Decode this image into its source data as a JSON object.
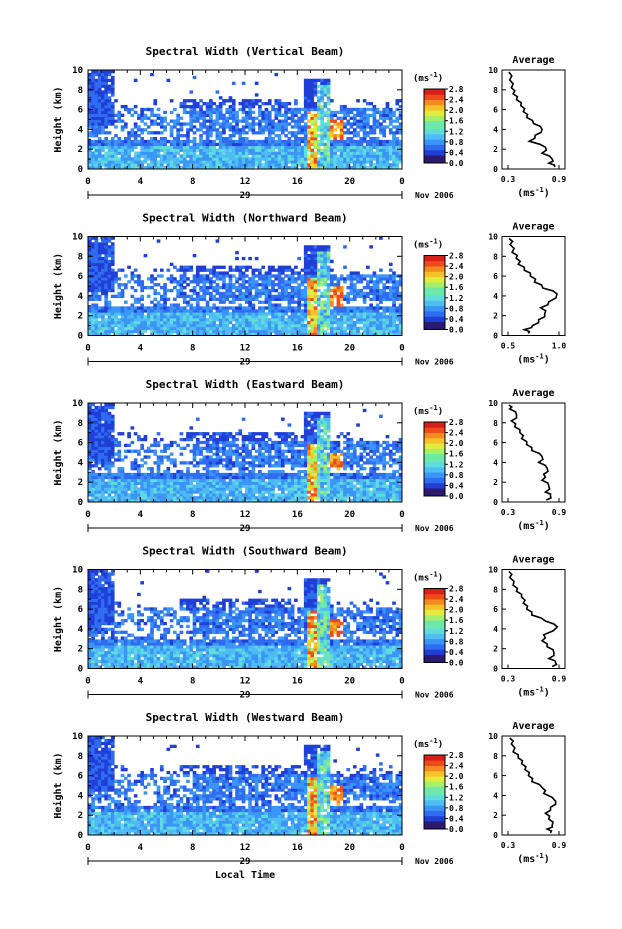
{
  "chart_data": {
    "type": "heatmap",
    "panels": [
      {
        "title": "Spectral Width (Vertical Beam)",
        "seed": 11,
        "profile_xlim": [
          0.3,
          0.9
        ],
        "profile_xticks": [
          "0.3",
          "0.9"
        ],
        "profile": [
          [
            0.85,
            0.2
          ],
          [
            0.78,
            0.6
          ],
          [
            0.82,
            1.0
          ],
          [
            0.7,
            1.6
          ],
          [
            0.74,
            2.2
          ],
          [
            0.55,
            2.8
          ],
          [
            0.62,
            3.4
          ],
          [
            0.7,
            4.0
          ],
          [
            0.6,
            4.6
          ],
          [
            0.52,
            5.2
          ],
          [
            0.48,
            5.8
          ],
          [
            0.45,
            6.4
          ],
          [
            0.4,
            7.0
          ],
          [
            0.36,
            7.6
          ],
          [
            0.34,
            8.2
          ],
          [
            0.32,
            9.0
          ],
          [
            0.31,
            9.8
          ]
        ]
      },
      {
        "title": "Spectral Width (Northward Beam)",
        "seed": 23,
        "profile_xlim": [
          0.5,
          1.0
        ],
        "profile_xticks": [
          "0.5",
          "1.0"
        ],
        "profile": [
          [
            0.7,
            0.2
          ],
          [
            0.66,
            0.6
          ],
          [
            0.74,
            1.0
          ],
          [
            0.8,
            1.6
          ],
          [
            0.86,
            2.2
          ],
          [
            0.82,
            2.8
          ],
          [
            0.9,
            3.4
          ],
          [
            0.98,
            4.2
          ],
          [
            0.84,
            4.8
          ],
          [
            0.76,
            5.4
          ],
          [
            0.72,
            6.0
          ],
          [
            0.66,
            6.6
          ],
          [
            0.6,
            7.2
          ],
          [
            0.58,
            7.8
          ],
          [
            0.54,
            8.4
          ],
          [
            0.52,
            9.2
          ],
          [
            0.51,
            9.8
          ]
        ]
      },
      {
        "title": "Spectral Width (Eastward Beam)",
        "seed": 37,
        "profile_xlim": [
          0.3,
          0.9
        ],
        "profile_xticks": [
          "0.3",
          "0.9"
        ],
        "profile": [
          [
            0.75,
            0.2
          ],
          [
            0.8,
            0.6
          ],
          [
            0.74,
            1.0
          ],
          [
            0.78,
            1.6
          ],
          [
            0.7,
            2.2
          ],
          [
            0.72,
            2.8
          ],
          [
            0.76,
            3.4
          ],
          [
            0.66,
            4.0
          ],
          [
            0.7,
            4.6
          ],
          [
            0.58,
            5.2
          ],
          [
            0.52,
            5.8
          ],
          [
            0.46,
            6.4
          ],
          [
            0.44,
            7.0
          ],
          [
            0.38,
            7.6
          ],
          [
            0.34,
            8.2
          ],
          [
            0.4,
            8.8
          ],
          [
            0.32,
            9.4
          ],
          [
            0.31,
            9.8
          ]
        ]
      },
      {
        "title": "Spectral Width (Southward Beam)",
        "seed": 53,
        "profile_xlim": [
          0.3,
          0.9
        ],
        "profile_xticks": [
          "0.3",
          "0.9"
        ],
        "profile": [
          [
            0.82,
            0.2
          ],
          [
            0.86,
            0.6
          ],
          [
            0.78,
            1.0
          ],
          [
            0.84,
            1.6
          ],
          [
            0.76,
            2.2
          ],
          [
            0.7,
            2.8
          ],
          [
            0.72,
            3.4
          ],
          [
            0.88,
            4.2
          ],
          [
            0.74,
            4.8
          ],
          [
            0.58,
            5.4
          ],
          [
            0.52,
            6.0
          ],
          [
            0.48,
            6.6
          ],
          [
            0.46,
            7.2
          ],
          [
            0.4,
            7.8
          ],
          [
            0.36,
            8.4
          ],
          [
            0.32,
            9.2
          ],
          [
            0.31,
            9.8
          ]
        ]
      },
      {
        "title": "Spectral Width (Westward Beam)",
        "seed": 71,
        "profile_xlim": [
          0.3,
          0.9
        ],
        "profile_xticks": [
          "0.3",
          "0.9"
        ],
        "profile": [
          [
            0.8,
            0.2
          ],
          [
            0.76,
            0.6
          ],
          [
            0.82,
            1.0
          ],
          [
            0.78,
            1.6
          ],
          [
            0.74,
            2.2
          ],
          [
            0.8,
            2.8
          ],
          [
            0.86,
            3.4
          ],
          [
            0.72,
            4.2
          ],
          [
            0.7,
            4.8
          ],
          [
            0.58,
            5.4
          ],
          [
            0.54,
            6.0
          ],
          [
            0.5,
            6.6
          ],
          [
            0.46,
            7.2
          ],
          [
            0.42,
            7.8
          ],
          [
            0.36,
            8.4
          ],
          [
            0.34,
            9.2
          ],
          [
            0.32,
            9.8
          ]
        ]
      }
    ],
    "ylabel": "Height (km)",
    "xlabel": "Local Time",
    "xlim": [
      0,
      24
    ],
    "ylim": [
      0,
      10
    ],
    "x_ticks": [
      "0",
      "4",
      "8",
      "12",
      "16",
      "20",
      "0"
    ],
    "y_ticks": [
      "0",
      "2",
      "4",
      "6",
      "8",
      "10"
    ],
    "date_day": "29",
    "date_month": "Nov 2006",
    "colorbar": {
      "unit_label": "(ms",
      "unit_exp": "-1",
      "ticks": [
        "0.0",
        "0.4",
        "0.8",
        "1.2",
        "1.6",
        "2.0",
        "2.4",
        "2.8"
      ],
      "range": [
        0,
        2.8
      ]
    },
    "profile_title": "Average",
    "profile_xlabel": "(ms",
    "profile_xlabel_exp": "-1",
    "profile_ylim": [
      0,
      10
    ],
    "profile_yticks": [
      "0",
      "2",
      "4",
      "6",
      "8",
      "10"
    ],
    "colors": [
      "#2b1a6e",
      "#1f3fd6",
      "#2f6cf0",
      "#3b95f7",
      "#4fbcf4",
      "#5fdcdc",
      "#6ee8a8",
      "#a6ef6a",
      "#e3ec3e",
      "#f7c12a",
      "#f58a20",
      "#ee4a1c",
      "#d8201a"
    ]
  }
}
